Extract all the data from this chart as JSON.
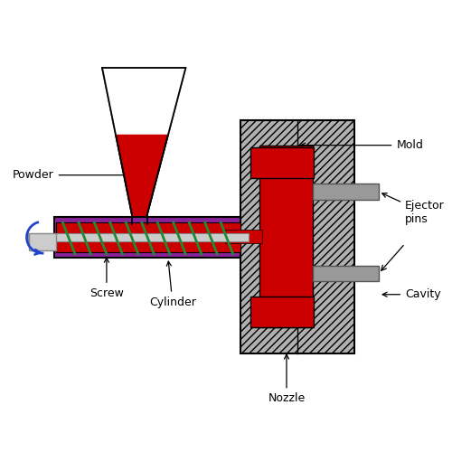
{
  "background_color": "#ffffff",
  "labels": {
    "powder": "Powder",
    "screw": "Screw",
    "cylinder": "Cylinder",
    "nozzle": "Nozzle",
    "mold": "Mold",
    "ejector_pins": "Ejector\npins",
    "cavity": "Cavity"
  },
  "colors": {
    "red": "#cc0000",
    "purple": "#882299",
    "green": "#228833",
    "gray_mold": "#b0b0b0",
    "gray_pin": "#999999",
    "white": "#ffffff",
    "blue": "#2244cc",
    "black": "#000000",
    "light_gray": "#cccccc"
  },
  "figsize": [
    5.0,
    5.0
  ],
  "dpi": 100
}
